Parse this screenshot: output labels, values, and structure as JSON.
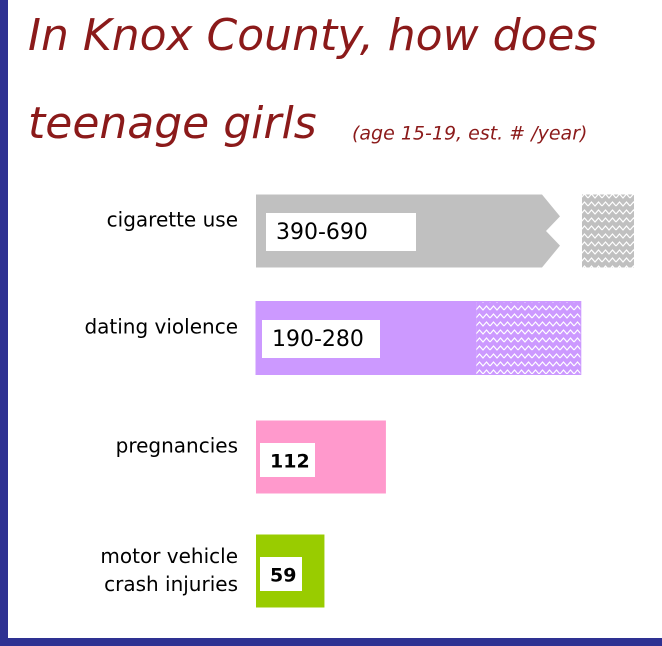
{
  "chart_data": {
    "type": "range-bar",
    "title": "In Knox County, how does",
    "title_line2": "teenage girls",
    "subtitle": "(age 15-19, est. # /year)",
    "categories": [
      "cigarette use",
      "dating violence",
      "pregnancies",
      "motor vehicle\ncrash injuries"
    ],
    "low": [
      390,
      190,
      112,
      59
    ],
    "high": [
      690,
      280,
      null,
      null
    ],
    "value_labels": [
      "390-690",
      "190-280",
      "112",
      "59"
    ],
    "colors": [
      "#c0c0c0",
      "#cc99ff",
      "#ff99cc",
      "#99cc00"
    ],
    "xlim": [
      0,
      350
    ]
  }
}
